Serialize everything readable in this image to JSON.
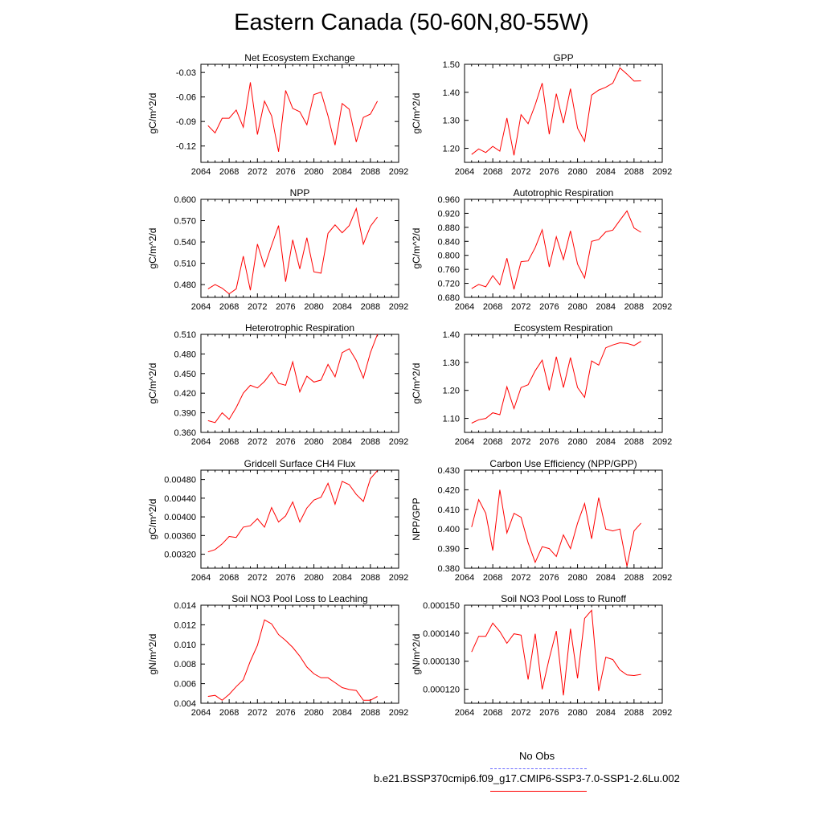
{
  "title": "Eastern Canada (50-60N,80-55W)",
  "legend": {
    "obs_label": "No Obs",
    "obs_color": "#0000ff",
    "model_label": "b.e21.BSSP370cmip6.f09_g17.CMIP6-SSP3-7.0-SSP1-2.6Lu.002",
    "model_color": "#ff0000"
  },
  "chart_data": [
    {
      "type": "line",
      "title": "Net Ecosystem Exchange",
      "ylabel": "gC/m^2/d",
      "xlim": [
        2064,
        2092
      ],
      "xticks": [
        2064,
        2068,
        2072,
        2076,
        2080,
        2084,
        2088,
        2092
      ],
      "ylim": [
        -0.14,
        -0.02
      ],
      "yticks": [
        -0.12,
        -0.09,
        -0.06,
        -0.03
      ],
      "ytick_labels": [
        "-0.12",
        "-0.09",
        "-0.06",
        "-0.03"
      ],
      "x": [
        2065,
        2066,
        2067,
        2068,
        2069,
        2070,
        2071,
        2072,
        2073,
        2074,
        2075,
        2076,
        2077,
        2078,
        2079,
        2080,
        2081,
        2082,
        2083,
        2084,
        2085,
        2086,
        2087,
        2088,
        2089
      ],
      "series": [
        {
          "values": [
            -0.095,
            -0.104,
            -0.086,
            -0.086,
            -0.076,
            -0.097,
            -0.042,
            -0.106,
            -0.065,
            -0.083,
            -0.127,
            -0.052,
            -0.074,
            -0.078,
            -0.094,
            -0.057,
            -0.054,
            -0.083,
            -0.119,
            -0.068,
            -0.075,
            -0.115,
            -0.085,
            -0.081,
            -0.065
          ],
          "color": "#ff0000"
        }
      ]
    },
    {
      "type": "line",
      "title": "GPP",
      "ylabel": "gC/m^2/d",
      "xlim": [
        2064,
        2092
      ],
      "xticks": [
        2064,
        2068,
        2072,
        2076,
        2080,
        2084,
        2088,
        2092
      ],
      "ylim": [
        1.15,
        1.5
      ],
      "yticks": [
        1.2,
        1.3,
        1.4,
        1.5
      ],
      "ytick_labels": [
        "1.20",
        "1.30",
        "1.40",
        "1.50"
      ],
      "x": [
        2065,
        2066,
        2067,
        2068,
        2069,
        2070,
        2071,
        2072,
        2073,
        2074,
        2075,
        2076,
        2077,
        2078,
        2079,
        2080,
        2081,
        2082,
        2083,
        2084,
        2085,
        2086,
        2087,
        2088,
        2089
      ],
      "series": [
        {
          "values": [
            1.178,
            1.198,
            1.185,
            1.207,
            1.19,
            1.308,
            1.175,
            1.32,
            1.288,
            1.355,
            1.433,
            1.25,
            1.395,
            1.29,
            1.413,
            1.272,
            1.225,
            1.39,
            1.408,
            1.418,
            1.433,
            1.487,
            1.465,
            1.44,
            1.441
          ],
          "color": "#ff0000"
        }
      ]
    },
    {
      "type": "line",
      "title": "NPP",
      "ylabel": "gC/m^2/d",
      "xlim": [
        2064,
        2092
      ],
      "xticks": [
        2064,
        2068,
        2072,
        2076,
        2080,
        2084,
        2088,
        2092
      ],
      "ylim": [
        0.462,
        0.6
      ],
      "yticks": [
        0.48,
        0.51,
        0.54,
        0.57,
        0.6
      ],
      "ytick_labels": [
        "0.480",
        "0.510",
        "0.540",
        "0.570",
        "0.600"
      ],
      "x": [
        2065,
        2066,
        2067,
        2068,
        2069,
        2070,
        2071,
        2072,
        2073,
        2074,
        2075,
        2076,
        2077,
        2078,
        2079,
        2080,
        2081,
        2082,
        2083,
        2084,
        2085,
        2086,
        2087,
        2088,
        2089
      ],
      "series": [
        {
          "values": [
            0.474,
            0.48,
            0.475,
            0.467,
            0.474,
            0.52,
            0.472,
            0.537,
            0.505,
            0.535,
            0.563,
            0.484,
            0.543,
            0.502,
            0.546,
            0.498,
            0.496,
            0.552,
            0.564,
            0.553,
            0.563,
            0.587,
            0.537,
            0.562,
            0.575
          ],
          "color": "#ff0000"
        }
      ]
    },
    {
      "type": "line",
      "title": "Autotrophic Respiration",
      "ylabel": "gC/m^2/d",
      "xlim": [
        2064,
        2092
      ],
      "xticks": [
        2064,
        2068,
        2072,
        2076,
        2080,
        2084,
        2088,
        2092
      ],
      "ylim": [
        0.68,
        0.96
      ],
      "yticks": [
        0.68,
        0.72,
        0.76,
        0.8,
        0.84,
        0.88,
        0.92,
        0.96
      ],
      "ytick_labels": [
        "0.680",
        "0.720",
        "0.760",
        "0.800",
        "0.840",
        "0.880",
        "0.920",
        "0.960"
      ],
      "x": [
        2065,
        2066,
        2067,
        2068,
        2069,
        2070,
        2071,
        2072,
        2073,
        2074,
        2075,
        2076,
        2077,
        2078,
        2079,
        2080,
        2081,
        2082,
        2083,
        2084,
        2085,
        2086,
        2087,
        2088,
        2089
      ],
      "series": [
        {
          "values": [
            0.705,
            0.717,
            0.71,
            0.742,
            0.716,
            0.792,
            0.703,
            0.782,
            0.784,
            0.822,
            0.873,
            0.767,
            0.853,
            0.788,
            0.87,
            0.775,
            0.735,
            0.84,
            0.845,
            0.867,
            0.872,
            0.9,
            0.927,
            0.878,
            0.866
          ],
          "color": "#ff0000"
        }
      ]
    },
    {
      "type": "line",
      "title": "Heterotrophic Respiration",
      "ylabel": "gC/m^2/d",
      "xlim": [
        2064,
        2092
      ],
      "xticks": [
        2064,
        2068,
        2072,
        2076,
        2080,
        2084,
        2088,
        2092
      ],
      "ylim": [
        0.36,
        0.51
      ],
      "yticks": [
        0.36,
        0.39,
        0.42,
        0.45,
        0.48,
        0.51
      ],
      "ytick_labels": [
        "0.360",
        "0.390",
        "0.420",
        "0.450",
        "0.480",
        "0.510"
      ],
      "x": [
        2065,
        2066,
        2067,
        2068,
        2069,
        2070,
        2071,
        2072,
        2073,
        2074,
        2075,
        2076,
        2077,
        2078,
        2079,
        2080,
        2081,
        2082,
        2083,
        2084,
        2085,
        2086,
        2087,
        2088,
        2089
      ],
      "series": [
        {
          "values": [
            0.378,
            0.375,
            0.39,
            0.38,
            0.398,
            0.42,
            0.432,
            0.428,
            0.438,
            0.452,
            0.435,
            0.432,
            0.468,
            0.422,
            0.446,
            0.437,
            0.44,
            0.464,
            0.445,
            0.482,
            0.488,
            0.47,
            0.443,
            0.482,
            0.51
          ],
          "color": "#ff0000"
        }
      ]
    },
    {
      "type": "line",
      "title": "Ecosystem Respiration",
      "ylabel": "gC/m^2/d",
      "xlim": [
        2064,
        2092
      ],
      "xticks": [
        2064,
        2068,
        2072,
        2076,
        2080,
        2084,
        2088,
        2092
      ],
      "ylim": [
        1.05,
        1.4
      ],
      "yticks": [
        1.1,
        1.2,
        1.3,
        1.4
      ],
      "ytick_labels": [
        "1.10",
        "1.20",
        "1.30",
        "1.40"
      ],
      "x": [
        2065,
        2066,
        2067,
        2068,
        2069,
        2070,
        2071,
        2072,
        2073,
        2074,
        2075,
        2076,
        2077,
        2078,
        2079,
        2080,
        2081,
        2082,
        2083,
        2084,
        2085,
        2086,
        2087,
        2088,
        2089
      ],
      "series": [
        {
          "values": [
            1.083,
            1.095,
            1.1,
            1.12,
            1.113,
            1.213,
            1.135,
            1.21,
            1.22,
            1.27,
            1.308,
            1.2,
            1.32,
            1.21,
            1.317,
            1.21,
            1.175,
            1.305,
            1.29,
            1.352,
            1.362,
            1.37,
            1.368,
            1.36,
            1.375
          ],
          "color": "#ff0000"
        }
      ]
    },
    {
      "type": "line",
      "title": "Gridcell Surface CH4 Flux",
      "ylabel": "gC/m^2/d",
      "xlim": [
        2064,
        2092
      ],
      "xticks": [
        2064,
        2068,
        2072,
        2076,
        2080,
        2084,
        2088,
        2092
      ],
      "ylim": [
        0.0029,
        0.005
      ],
      "yticks": [
        0.0032,
        0.0036,
        0.004,
        0.0044,
        0.0048
      ],
      "ytick_labels": [
        "0.00320",
        "0.00360",
        "0.00400",
        "0.00440",
        "0.00480"
      ],
      "x": [
        2065,
        2066,
        2067,
        2068,
        2069,
        2070,
        2071,
        2072,
        2073,
        2074,
        2075,
        2076,
        2077,
        2078,
        2079,
        2080,
        2081,
        2082,
        2083,
        2084,
        2085,
        2086,
        2087,
        2088,
        2089
      ],
      "series": [
        {
          "values": [
            0.00325,
            0.0033,
            0.00342,
            0.00358,
            0.00356,
            0.00378,
            0.00381,
            0.00396,
            0.00378,
            0.0042,
            0.00389,
            0.00402,
            0.00432,
            0.00389,
            0.00419,
            0.00436,
            0.00442,
            0.00472,
            0.00427,
            0.00476,
            0.00469,
            0.00448,
            0.00433,
            0.00482,
            0.00499
          ],
          "color": "#ff0000"
        }
      ]
    },
    {
      "type": "line",
      "title": "Carbon Use Efficiency (NPP/GPP)",
      "ylabel": "NPP/GPP",
      "xlim": [
        2064,
        2092
      ],
      "xticks": [
        2064,
        2068,
        2072,
        2076,
        2080,
        2084,
        2088,
        2092
      ],
      "ylim": [
        0.38,
        0.43
      ],
      "yticks": [
        0.38,
        0.39,
        0.4,
        0.41,
        0.42,
        0.43
      ],
      "ytick_labels": [
        "0.380",
        "0.390",
        "0.400",
        "0.410",
        "0.420",
        "0.430"
      ],
      "x": [
        2065,
        2066,
        2067,
        2068,
        2069,
        2070,
        2071,
        2072,
        2073,
        2074,
        2075,
        2076,
        2077,
        2078,
        2079,
        2080,
        2081,
        2082,
        2083,
        2084,
        2085,
        2086,
        2087,
        2088,
        2089
      ],
      "series": [
        {
          "values": [
            0.401,
            0.415,
            0.408,
            0.389,
            0.42,
            0.398,
            0.408,
            0.406,
            0.393,
            0.383,
            0.391,
            0.39,
            0.386,
            0.397,
            0.39,
            0.403,
            0.413,
            0.395,
            0.416,
            0.4,
            0.399,
            0.4,
            0.381,
            0.399,
            0.403
          ],
          "color": "#ff0000"
        }
      ]
    },
    {
      "type": "line",
      "title": "Soil NO3 Pool Loss to Leaching",
      "ylabel": "gN/m^2/d",
      "xlim": [
        2064,
        2092
      ],
      "xticks": [
        2064,
        2068,
        2072,
        2076,
        2080,
        2084,
        2088,
        2092
      ],
      "ylim": [
        0.004,
        0.014
      ],
      "yticks": [
        0.004,
        0.006,
        0.008,
        0.01,
        0.012,
        0.014
      ],
      "ytick_labels": [
        "0.004",
        "0.006",
        "0.008",
        "0.010",
        "0.012",
        "0.014"
      ],
      "x": [
        2065,
        2066,
        2067,
        2068,
        2069,
        2070,
        2071,
        2072,
        2073,
        2074,
        2075,
        2076,
        2077,
        2078,
        2079,
        2080,
        2081,
        2082,
        2083,
        2084,
        2085,
        2086,
        2087,
        2088,
        2089
      ],
      "series": [
        {
          "values": [
            0.0047,
            0.0048,
            0.0043,
            0.0049,
            0.0057,
            0.0064,
            0.0083,
            0.0099,
            0.0125,
            0.0121,
            0.011,
            0.0104,
            0.0097,
            0.0088,
            0.0077,
            0.007,
            0.0066,
            0.0066,
            0.0061,
            0.0056,
            0.0054,
            0.0053,
            0.0043,
            0.0043,
            0.0047
          ],
          "color": "#ff0000"
        }
      ]
    },
    {
      "type": "line",
      "title": "Soil NO3 Pool Loss to Runoff",
      "ylabel": "gN/m^2/d",
      "xlim": [
        2064,
        2092
      ],
      "xticks": [
        2064,
        2068,
        2072,
        2076,
        2080,
        2084,
        2088,
        2092
      ],
      "ylim": [
        0.000115,
        0.00015
      ],
      "yticks": [
        0.00012,
        0.00013,
        0.00014,
        0.00015
      ],
      "ytick_labels": [
        "0.000120",
        "0.000130",
        "0.000140",
        "0.000150"
      ],
      "x": [
        2065,
        2066,
        2067,
        2068,
        2069,
        2070,
        2071,
        2072,
        2073,
        2074,
        2075,
        2076,
        2077,
        2078,
        2079,
        2080,
        2081,
        2082,
        2083,
        2084,
        2085,
        2086,
        2087,
        2088,
        2089
      ],
      "series": [
        {
          "values": [
            0.0001333,
            0.0001389,
            0.0001389,
            0.0001436,
            0.0001406,
            0.0001364,
            0.0001398,
            0.0001393,
            0.0001235,
            0.0001398,
            0.00012,
            0.000131,
            0.0001408,
            0.0001178,
            0.0001416,
            0.0001239,
            0.0001453,
            0.0001482,
            0.0001194,
            0.0001314,
            0.0001306,
            0.0001269,
            0.0001251,
            0.0001249,
            0.0001253
          ],
          "color": "#ff0000"
        }
      ]
    }
  ]
}
